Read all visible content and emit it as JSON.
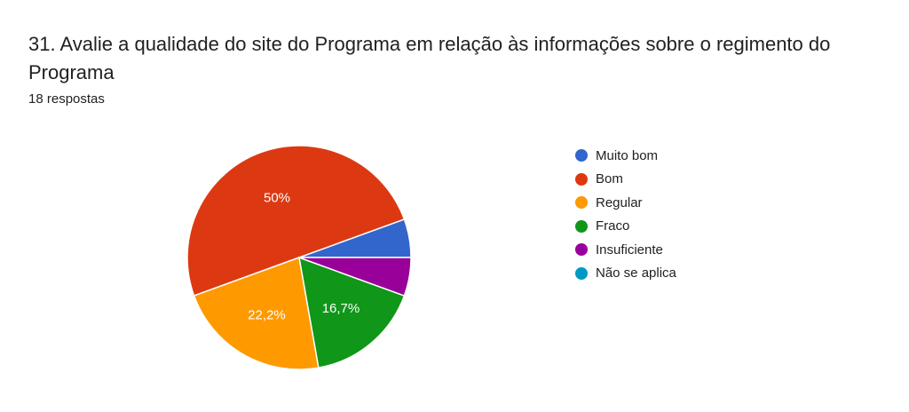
{
  "question": {
    "title": "31. Avalie a qualidade do site do Programa em relação às informações sobre o regimento do Programa",
    "responses": "18 respostas"
  },
  "chart_data": {
    "type": "pie",
    "categories": [
      "Muito bom",
      "Bom",
      "Regular",
      "Fraco",
      "Insuficiente",
      "Não se aplica"
    ],
    "values": [
      1,
      9,
      4,
      3,
      1,
      0
    ],
    "percent_labels": [
      "",
      "50%",
      "22,2%",
      "16,7%",
      "",
      ""
    ],
    "colors": [
      "#3366cc",
      "#dc3912",
      "#ff9900",
      "#109618",
      "#990099",
      "#0099c6"
    ],
    "legend_position": "right"
  }
}
